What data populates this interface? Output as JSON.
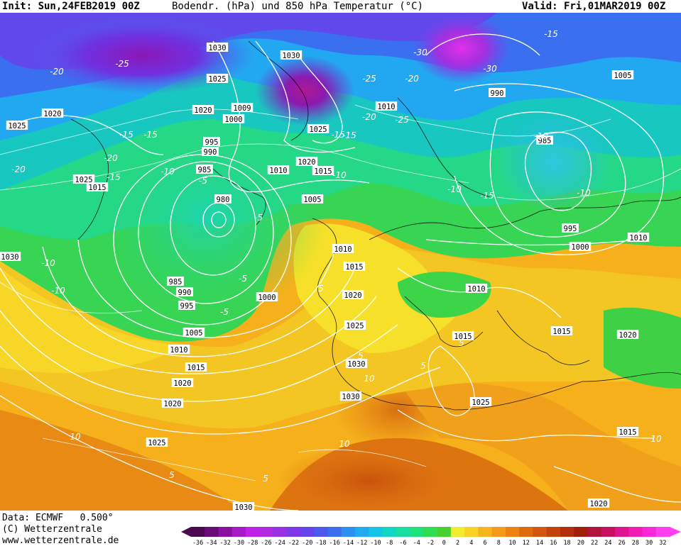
{
  "header": {
    "init": "Init: Sun,24FEB2019 00Z",
    "title": "Bodendr. (hPa) und 850 hPa Temperatur (°C)",
    "valid": "Valid: Fri,01MAR2019 00Z"
  },
  "footer": {
    "data_source": "Data: ECMWF   0.500°",
    "copyright": "(C) Wetterzentrale",
    "url": "www.wetterzentrale.de"
  },
  "map_labels": {
    "pressure": [
      "1030",
      "1030",
      "1025",
      "1020",
      "1025",
      "1020",
      "1015",
      "1000",
      "1009",
      "995",
      "990",
      "985",
      "980",
      "1010",
      "1020",
      "1015",
      "1025",
      "1010",
      "990",
      "1005",
      "985",
      "1005",
      "995",
      "1000",
      "1010",
      "1025",
      "1010",
      "1015",
      "1020",
      "1025",
      "1030",
      "1030",
      "1010",
      "1015",
      "1015",
      "1020",
      "1025",
      "1015",
      "1020",
      "1020",
      "985",
      "990",
      "995",
      "1000",
      "1005",
      "1010",
      "1015",
      "1020",
      "1025",
      "1030",
      "1030"
    ],
    "temperature": [
      "-20",
      "-25",
      "-20",
      "-15",
      "-15",
      "-10",
      "-5",
      "-10",
      "-15",
      "-20",
      "-25",
      "-30",
      "-30",
      "-25",
      "-20",
      "-15",
      "-10",
      "-10",
      "-15",
      "-15",
      "-10",
      "-10",
      "-5",
      "-5",
      "-10",
      "-5",
      "5",
      "5",
      "10",
      "5",
      "10",
      "5",
      "10",
      "10",
      "5",
      "5",
      "-15",
      "-20"
    ]
  },
  "colorbar": {
    "ticks": [
      "-36",
      "-34",
      "-32",
      "-30",
      "-28",
      "-26",
      "-24",
      "-22",
      "-20",
      "-18",
      "-16",
      "-14",
      "-12",
      "-10",
      "-8",
      "-6",
      "-4",
      "-2",
      "0",
      "2",
      "4",
      "6",
      "8",
      "10",
      "12",
      "14",
      "16",
      "18",
      "20",
      "22",
      "24",
      "26",
      "28",
      "30",
      "32"
    ],
    "colors": [
      "#4b0a50",
      "#6a0a78",
      "#8a10a0",
      "#a818c8",
      "#c020e8",
      "#b028e0",
      "#9630e0",
      "#7c38e8",
      "#6444ec",
      "#4c58ee",
      "#3a70f0",
      "#2c90f0",
      "#20aaf0",
      "#14c4e6",
      "#12d6c4",
      "#18dca0",
      "#20e07a",
      "#30dc50",
      "#48d030",
      "#f0ec30",
      "#fad226",
      "#f8b41e",
      "#f49a18",
      "#ec8212",
      "#e06a0e",
      "#d2560c",
      "#c4420a",
      "#b42e0a",
      "#a01e0a",
      "#b0143c",
      "#c81060",
      "#e0148c",
      "#f01cb4",
      "#f828d8",
      "#ff40f0"
    ]
  }
}
